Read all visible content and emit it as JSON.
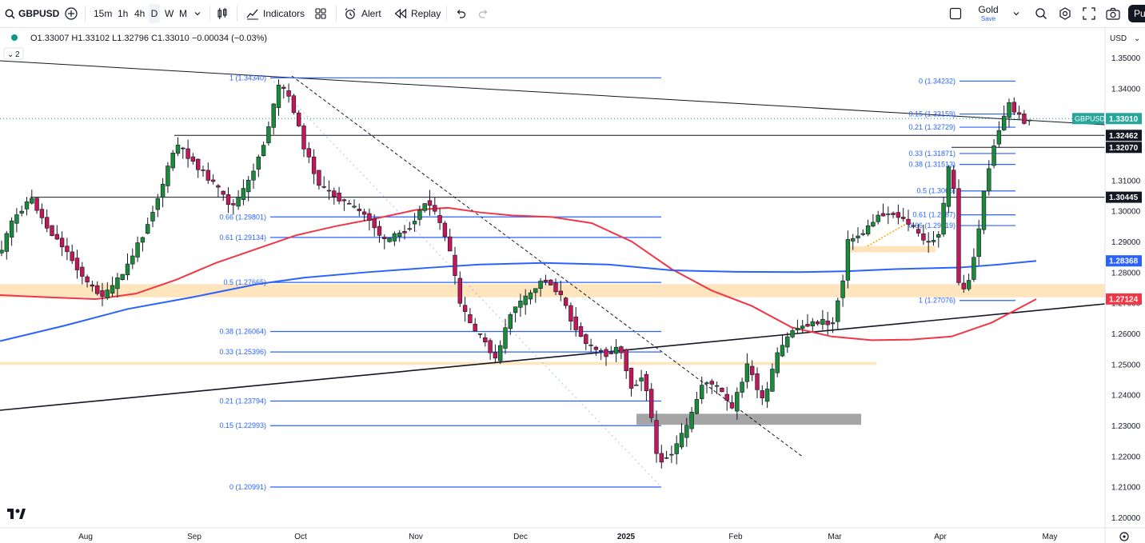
{
  "toolbar": {
    "symbol": "GBPUSD",
    "intervals": [
      "15m",
      "1h",
      "4h",
      "D",
      "W",
      "M"
    ],
    "active_interval": "D",
    "indicators_label": "Indicators",
    "alert_label": "Alert",
    "replay_label": "Replay",
    "layout_name": "Gold",
    "layout_sub": "Save",
    "publish_label": "Pu"
  },
  "legend": {
    "ohlc": "O1.33007  H1.33102  L1.32796  C1.33010  −0.00034 (−0.03%)",
    "collapse_count": "2"
  },
  "currency": "USD",
  "tv_logo": "TV",
  "colors": {
    "bull": "#26a69a",
    "bull_fill": "#1b8a3a",
    "bear": "#ef5350",
    "bear_fill": "#c2185b",
    "fib": "#2962ff",
    "ma_red": "#f23645",
    "ma_blue": "#2962ff",
    "zone": "#ffe0b2",
    "gray_zone": "#a5a5a5"
  },
  "chart_data": {
    "type": "candlestick",
    "symbol": "GBPUSD",
    "timeframe": "D",
    "y_axis": {
      "ticks": [
        "1.35000",
        "1.34000",
        "1.33000",
        "1.32000",
        "1.31000",
        "1.30000",
        "1.29000",
        "1.28000",
        "1.27000",
        "1.26000",
        "1.25000",
        "1.24000",
        "1.23000",
        "1.22000",
        "1.21000",
        "1.20000"
      ],
      "range": [
        1.1987,
        1.3522
      ]
    },
    "x_axis": {
      "ticks": [
        "Aug",
        "Sep",
        "Oct",
        "Nov",
        "Dec",
        "2025",
        "Feb",
        "Mar",
        "Apr",
        "May"
      ]
    },
    "price_badges": [
      {
        "label": "GBPUSD",
        "value": "1.33010",
        "price": 1.3301,
        "style": "green"
      },
      {
        "label": "",
        "value": "1.32462",
        "price": 1.32462,
        "style": "black"
      },
      {
        "label": "",
        "value": "1.32070",
        "price": 1.3207,
        "style": "black"
      },
      {
        "label": "",
        "value": "1.30445",
        "price": 1.30445,
        "style": "black"
      },
      {
        "label": "",
        "value": "1.28368",
        "price": 1.28368,
        "style": "blue"
      },
      {
        "label": "",
        "value": "1.27124",
        "price": 1.27124,
        "style": "red"
      }
    ],
    "fib_left": [
      {
        "text": "1 (1.34340)",
        "price": 1.3434
      },
      {
        "text": "0.66 (1.29801)",
        "price": 1.29801
      },
      {
        "text": "0.61 (1.29134)",
        "price": 1.29134
      },
      {
        "text": "0.5 (1.27665)",
        "price": 1.27665
      },
      {
        "text": "0.38 (1.26064)",
        "price": 1.26064
      },
      {
        "text": "0.33 (1.25396)",
        "price": 1.25396
      },
      {
        "text": "0.21 (1.23794)",
        "price": 1.23794
      },
      {
        "text": "0.15 (1.22993)",
        "price": 1.22993
      },
      {
        "text": "0 (1.20991)",
        "price": 1.20991
      }
    ],
    "fib_right": [
      {
        "text": "0 (1.34232)",
        "price": 1.34232
      },
      {
        "text": "0.15 (1.33159)",
        "price": 1.33159
      },
      {
        "text": "0.21 (1.32729)",
        "price": 1.32729
      },
      {
        "text": "0.33 (1.31871)",
        "price": 1.31871
      },
      {
        "text": "0.38 (1.31513)",
        "price": 1.31513
      },
      {
        "text": "0.5 (1.3065)",
        "price": 1.3065
      },
      {
        "text": "0.61 (1.2987)",
        "price": 1.2987
      },
      {
        "text": "0.66 (1.29519)",
        "price": 1.29519
      },
      {
        "text": "1 (1.27076)",
        "price": 1.27076
      }
    ]
  }
}
